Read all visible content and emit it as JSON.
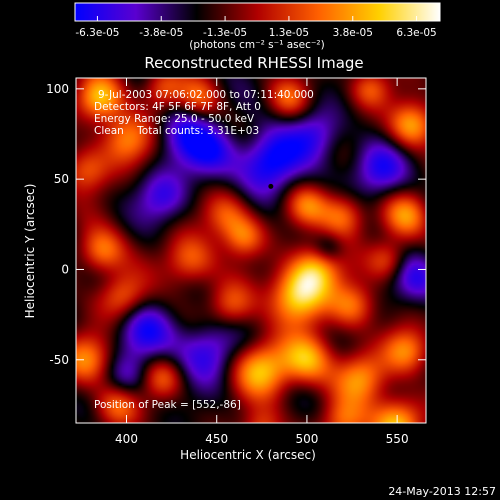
{
  "chart_data": {
    "type": "heatmap",
    "title": "Reconstructed RHESSI Image",
    "xlabel": "Heliocentric X (arcsec)",
    "ylabel": "Heliocentric Y (arcsec)",
    "xlim": [
      372,
      566
    ],
    "ylim": [
      -85,
      106
    ],
    "xticks": [
      400,
      450,
      500,
      550
    ],
    "xtick_labels": [
      "400",
      "450",
      "500",
      "550"
    ],
    "yticks": [
      100,
      50,
      0,
      -50
    ],
    "ytick_labels": [
      "100",
      "50",
      "0",
      "-50"
    ],
    "colorbar": {
      "min": -6.3e-05,
      "max": 6.3e-05,
      "tick_labels": [
        "-6.3e-05",
        "-3.8e-05",
        "-1.3e-05",
        "1.3e-05",
        "3.8e-05",
        "6.3e-05"
      ],
      "unit_label": "(photons cm⁻² s⁻¹ asec⁻²)",
      "colors": [
        "#0000ff",
        "#5a00d0",
        "#000000",
        "#b00000",
        "#ff6000",
        "#ffd000",
        "#ffffff"
      ]
    },
    "info_lines": [
      "9-Jul-2003 07:06:02.000 to 07:11:40.000",
      "Detectors: 4F 5F 6F 7F 8F, Att 0",
      "Energy Range: 25.0 - 50.0 keV",
      "Clean    Total counts: 3.31E+03"
    ],
    "peak_label": "Position of Peak = [552,-86]",
    "marker": {
      "x": 480,
      "y": 46
    },
    "blobs": [
      {
        "x": 385,
        "y": 95,
        "v": 0.85,
        "s": 9
      },
      {
        "x": 400,
        "y": 72,
        "v": 0.7,
        "s": 10
      },
      {
        "x": 378,
        "y": 55,
        "v": 0.6,
        "s": 9
      },
      {
        "x": 420,
        "y": 100,
        "v": 0.6,
        "s": 8
      },
      {
        "x": 386,
        "y": 10,
        "v": 0.7,
        "s": 9
      },
      {
        "x": 398,
        "y": -15,
        "v": 0.6,
        "s": 9
      },
      {
        "x": 378,
        "y": -50,
        "v": 0.7,
        "s": 10
      },
      {
        "x": 395,
        "y": -75,
        "v": 0.6,
        "s": 9
      },
      {
        "x": 420,
        "y": -60,
        "v": 0.5,
        "s": 8
      },
      {
        "x": 435,
        "y": 5,
        "v": 0.65,
        "s": 10
      },
      {
        "x": 455,
        "y": 30,
        "v": 0.55,
        "s": 9
      },
      {
        "x": 465,
        "y": 18,
        "v": 0.6,
        "s": 8
      },
      {
        "x": 458,
        "y": -20,
        "v": 0.55,
        "s": 9
      },
      {
        "x": 495,
        "y": -15,
        "v": 1.0,
        "s": 11
      },
      {
        "x": 505,
        "y": 0,
        "v": 0.8,
        "s": 10
      },
      {
        "x": 520,
        "y": 30,
        "v": 0.7,
        "s": 9
      },
      {
        "x": 500,
        "y": 35,
        "v": 0.55,
        "s": 8
      },
      {
        "x": 525,
        "y": -20,
        "v": 0.65,
        "s": 9
      },
      {
        "x": 475,
        "y": -55,
        "v": 0.9,
        "s": 11
      },
      {
        "x": 500,
        "y": -50,
        "v": 0.8,
        "s": 10
      },
      {
        "x": 530,
        "y": -60,
        "v": 0.75,
        "s": 10
      },
      {
        "x": 555,
        "y": -45,
        "v": 0.7,
        "s": 9
      },
      {
        "x": 550,
        "y": -85,
        "v": 0.95,
        "s": 10
      },
      {
        "x": 520,
        "y": -85,
        "v": 0.6,
        "s": 9
      },
      {
        "x": 475,
        "y": -88,
        "v": 0.5,
        "s": 8
      },
      {
        "x": 558,
        "y": 80,
        "v": 0.85,
        "s": 9
      },
      {
        "x": 555,
        "y": 30,
        "v": 0.65,
        "s": 9
      },
      {
        "x": 545,
        "y": 5,
        "v": 0.55,
        "s": 8
      },
      {
        "x": 490,
        "y": 95,
        "v": 0.5,
        "s": 8
      },
      {
        "x": 535,
        "y": 100,
        "v": 0.55,
        "s": 8
      },
      {
        "x": 440,
        "y": 95,
        "v": 0.45,
        "s": 8
      },
      {
        "x": 480,
        "y": 60,
        "v": -0.8,
        "s": 12
      },
      {
        "x": 445,
        "y": 65,
        "v": -0.6,
        "s": 11
      },
      {
        "x": 420,
        "y": 40,
        "v": -0.5,
        "s": 10
      },
      {
        "x": 410,
        "y": -35,
        "v": -0.55,
        "s": 11
      },
      {
        "x": 445,
        "y": -45,
        "v": -0.6,
        "s": 12
      },
      {
        "x": 560,
        "y": -5,
        "v": -0.5,
        "s": 10
      },
      {
        "x": 540,
        "y": 55,
        "v": -0.6,
        "s": 11
      },
      {
        "x": 505,
        "y": 75,
        "v": -0.5,
        "s": 10
      },
      {
        "x": 430,
        "y": 75,
        "v": -0.45,
        "s": 10
      },
      {
        "x": 512,
        "y": 12,
        "v": -0.35,
        "s": 6
      },
      {
        "x": 400,
        "y": -60,
        "v": -0.4,
        "s": 9
      }
    ]
  },
  "footer": {
    "timestamp": "24-May-2013 12:57"
  }
}
